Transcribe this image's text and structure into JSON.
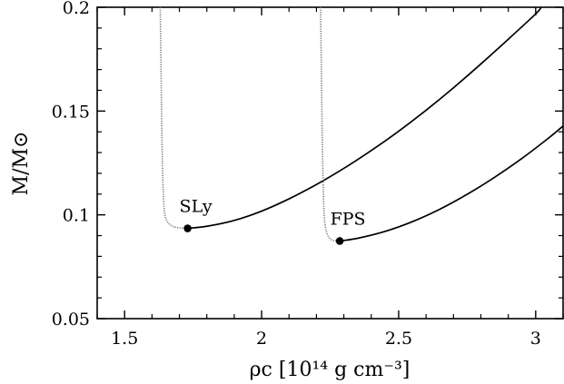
{
  "chart_data": {
    "type": "line",
    "title": "",
    "xlabel": "ρc [10¹⁴ g cm⁻³]",
    "ylabel": "M/M⊙",
    "xlim": [
      1.4,
      3.1
    ],
    "ylim": [
      0.05,
      0.2
    ],
    "x_ticks": [
      1.5,
      2,
      2.5,
      3
    ],
    "x_tick_labels": [
      "1.5",
      "2",
      "2.5",
      "3"
    ],
    "y_ticks": [
      0.05,
      0.1,
      0.15,
      0.2
    ],
    "y_tick_labels": [
      "0.05",
      "0.1",
      "0.15",
      "0.2"
    ],
    "grid": false,
    "legend": "none",
    "series": [
      {
        "name": "SLy",
        "color": "#000000",
        "unstable_branch": [
          [
            1.63,
            0.2
          ],
          [
            1.633,
            0.17
          ],
          [
            1.636,
            0.14
          ],
          [
            1.64,
            0.115
          ],
          [
            1.645,
            0.102
          ],
          [
            1.655,
            0.097
          ],
          [
            1.675,
            0.0945
          ],
          [
            1.705,
            0.0937
          ],
          [
            1.73,
            0.0935
          ]
        ],
        "stable_branch": [
          [
            1.73,
            0.0935
          ],
          [
            1.8,
            0.0945
          ],
          [
            1.9,
            0.0973
          ],
          [
            2.0,
            0.1018
          ],
          [
            2.1,
            0.1077
          ],
          [
            2.2,
            0.1146
          ],
          [
            2.3,
            0.1224
          ],
          [
            2.4,
            0.131
          ],
          [
            2.5,
            0.1403
          ],
          [
            2.6,
            0.1504
          ],
          [
            2.7,
            0.1612
          ],
          [
            2.8,
            0.1727
          ],
          [
            2.9,
            0.1846
          ],
          [
            3.0,
            0.1968
          ],
          [
            3.02,
            0.2
          ]
        ],
        "minimum": [
          1.73,
          0.0935
        ]
      },
      {
        "name": "FPS",
        "color": "#000000",
        "unstable_branch": [
          [
            2.215,
            0.2
          ],
          [
            2.218,
            0.17
          ],
          [
            2.221,
            0.14
          ],
          [
            2.225,
            0.112
          ],
          [
            2.23,
            0.097
          ],
          [
            2.24,
            0.0905
          ],
          [
            2.255,
            0.088
          ],
          [
            2.27,
            0.0875
          ],
          [
            2.285,
            0.0874
          ]
        ],
        "stable_branch": [
          [
            2.285,
            0.0874
          ],
          [
            2.35,
            0.0887
          ],
          [
            2.45,
            0.092
          ],
          [
            2.55,
            0.0967
          ],
          [
            2.65,
            0.1027
          ],
          [
            2.75,
            0.1099
          ],
          [
            2.85,
            0.1181
          ],
          [
            2.95,
            0.1272
          ],
          [
            3.05,
            0.1373
          ],
          [
            3.1,
            0.1428
          ]
        ],
        "minimum": [
          2.285,
          0.0874
        ]
      }
    ]
  }
}
